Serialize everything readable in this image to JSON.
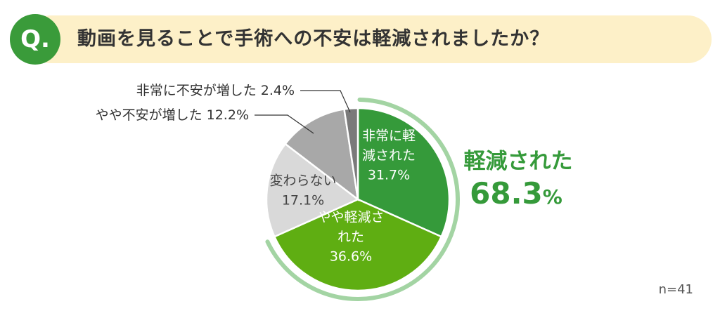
{
  "question": {
    "badge": "Q.",
    "text": "動画を見ることで手術への不安は軽減されましたか？"
  },
  "colors": {
    "greatly_reduced": "#359a3a",
    "somewhat_reduced": "#5fae12",
    "unchanged": "#d9d9d9",
    "somewhat_increased": "#a8a8a8",
    "greatly_increased": "#7a7a7a",
    "ring": "#a3d4a3",
    "total_text": "#359a3a"
  },
  "chart_data": {
    "type": "pie",
    "start": "12 o'clock",
    "direction": "clockwise",
    "slices": [
      {
        "label_lines": [
          "非常に軽",
          "減された"
        ],
        "value": 31.7,
        "value_text": "31.7%",
        "color_key": "greatly_reduced",
        "label_inside": true
      },
      {
        "label_lines": [
          "やや軽減さ",
          "れた"
        ],
        "value": 36.6,
        "value_text": "36.6%",
        "color_key": "somewhat_reduced",
        "label_inside": true
      },
      {
        "label_lines": [
          "変わらない"
        ],
        "value": 17.1,
        "value_text": "17.1%",
        "color_key": "unchanged",
        "label_inside": true
      },
      {
        "label_lines": [
          "やや不安が増した 12.2%"
        ],
        "value": 12.2,
        "value_text": "",
        "color_key": "somewhat_increased",
        "label_inside": false
      },
      {
        "label_lines": [
          "非常に不安が増した 2.4%"
        ],
        "value": 2.4,
        "value_text": "",
        "color_key": "greatly_increased",
        "label_inside": false
      }
    ],
    "summary": {
      "label": "軽減された",
      "value": "68.3",
      "unit": "%",
      "covers_slices": [
        0,
        1
      ]
    },
    "sample_size": "n=41"
  }
}
